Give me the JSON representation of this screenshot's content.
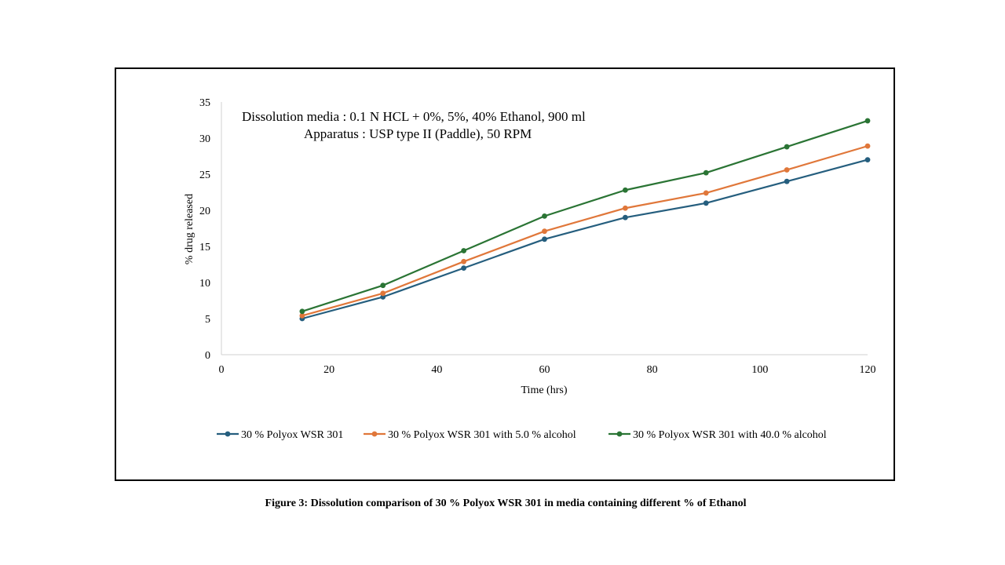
{
  "chart_data": {
    "type": "line",
    "title": "",
    "annotations": [
      "Dissolution media : 0.1 N HCL + 0%, 5%, 40% Ethanol, 900 ml",
      "Apparatus : USP  type II (Paddle), 50 RPM"
    ],
    "xlabel": "Time (hrs)",
    "ylabel": "% drug released",
    "xlim": [
      0,
      120
    ],
    "ylim": [
      0,
      35
    ],
    "xticks": [
      0,
      20,
      40,
      60,
      80,
      100,
      120
    ],
    "yticks": [
      0,
      5,
      10,
      15,
      20,
      25,
      30,
      35
    ],
    "grid": false,
    "legend_position": "bottom",
    "x": [
      15,
      30,
      45,
      60,
      75,
      90,
      105,
      120
    ],
    "series": [
      {
        "name": "30 % Polyox WSR 301",
        "color": "#255E7E",
        "values": [
          5.0,
          8.0,
          12.0,
          16.0,
          19.0,
          21.0,
          24.0,
          27.0
        ]
      },
      {
        "name": "30 % Polyox WSR 301 with 5.0 % alcohol",
        "color": "#E0773A",
        "values": [
          5.4,
          8.5,
          12.9,
          17.1,
          20.3,
          22.4,
          25.6,
          28.9
        ]
      },
      {
        "name": "30 % Polyox WSR 301 with 40.0 % alcohol",
        "color": "#2A7434",
        "values": [
          6.0,
          9.6,
          14.4,
          19.2,
          22.8,
          25.2,
          28.8,
          32.4
        ]
      }
    ]
  },
  "caption": "Figure 3: Dissolution comparison of 30 % Polyox WSR 301 in media containing different % of Ethanol"
}
